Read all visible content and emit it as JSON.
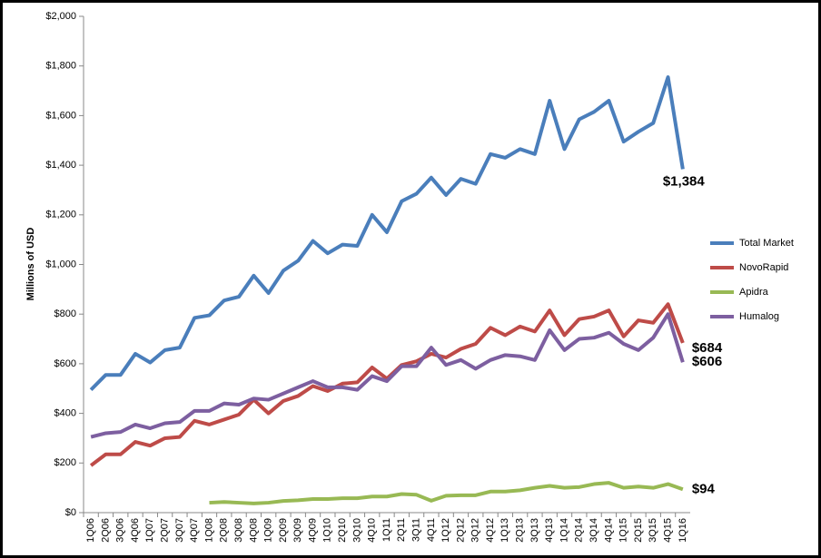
{
  "chart_data": {
    "type": "line",
    "ylabel": "Millions of USD",
    "categories": [
      "1Q06",
      "2Q06",
      "3Q06",
      "4Q06",
      "1Q07",
      "2Q07",
      "3Q07",
      "4Q07",
      "1Q08",
      "2Q08",
      "3Q08",
      "4Q08",
      "1Q09",
      "2Q09",
      "3Q09",
      "4Q09",
      "1Q10",
      "2Q10",
      "3Q10",
      "4Q10",
      "1Q11",
      "2Q11",
      "3Q11",
      "4Q11",
      "1Q12",
      "2Q12",
      "3Q12",
      "4Q12",
      "1Q13",
      "2Q13",
      "3Q13",
      "4Q13",
      "1Q14",
      "2Q14",
      "3Q14",
      "4Q14",
      "1Q15",
      "2Q15",
      "3Q15",
      "4Q15",
      "1Q16"
    ],
    "series": [
      {
        "name": "Total Market",
        "color": "#4a7ebb",
        "values": [
          495,
          555,
          555,
          640,
          605,
          655,
          665,
          785,
          795,
          855,
          870,
          955,
          885,
          975,
          1015,
          1095,
          1045,
          1080,
          1075,
          1200,
          1130,
          1255,
          1285,
          1350,
          1280,
          1345,
          1325,
          1445,
          1430,
          1465,
          1445,
          1660,
          1465,
          1585,
          1615,
          1660,
          1495,
          1535,
          1570,
          1755,
          1384
        ],
        "value_labels": [
          null,
          null,
          null,
          null,
          null,
          null,
          null,
          null,
          null,
          null,
          null,
          null,
          null,
          null,
          null,
          null,
          null,
          null,
          null,
          null,
          null,
          null,
          null,
          null,
          null,
          null,
          null,
          null,
          null,
          null,
          null,
          null,
          null,
          null,
          null,
          null,
          null,
          null,
          null,
          null,
          "$1,384"
        ]
      },
      {
        "name": "NovoRapid",
        "color": "#be4b48",
        "values": [
          190,
          235,
          235,
          285,
          270,
          300,
          305,
          370,
          355,
          375,
          395,
          455,
          400,
          450,
          470,
          510,
          490,
          520,
          525,
          585,
          540,
          595,
          610,
          640,
          625,
          660,
          680,
          745,
          715,
          750,
          730,
          815,
          715,
          780,
          790,
          815,
          710,
          775,
          765,
          840,
          684
        ],
        "value_labels": [
          null,
          null,
          null,
          null,
          null,
          null,
          null,
          null,
          null,
          null,
          null,
          null,
          null,
          null,
          null,
          null,
          null,
          null,
          null,
          null,
          null,
          null,
          null,
          null,
          null,
          null,
          null,
          null,
          null,
          null,
          null,
          null,
          null,
          null,
          null,
          null,
          null,
          null,
          null,
          null,
          "$684"
        ]
      },
      {
        "name": "Apidra",
        "color": "#98b954",
        "values": [
          null,
          null,
          null,
          null,
          null,
          null,
          null,
          null,
          40,
          43,
          40,
          37,
          40,
          47,
          50,
          55,
          55,
          58,
          58,
          65,
          65,
          75,
          72,
          48,
          68,
          70,
          70,
          85,
          85,
          90,
          100,
          108,
          100,
          103,
          115,
          120,
          100,
          105,
          100,
          115,
          94
        ],
        "value_labels": [
          null,
          null,
          null,
          null,
          null,
          null,
          null,
          null,
          null,
          null,
          null,
          null,
          null,
          null,
          null,
          null,
          null,
          null,
          null,
          null,
          null,
          null,
          null,
          null,
          null,
          null,
          null,
          null,
          null,
          null,
          null,
          null,
          null,
          null,
          null,
          null,
          null,
          null,
          null,
          null,
          "$94"
        ]
      },
      {
        "name": "Humalog",
        "color": "#7d5fa0",
        "values": [
          305,
          320,
          325,
          355,
          340,
          360,
          365,
          410,
          410,
          440,
          435,
          460,
          455,
          480,
          505,
          530,
          505,
          505,
          495,
          550,
          530,
          590,
          590,
          665,
          595,
          615,
          580,
          615,
          635,
          630,
          615,
          735,
          655,
          700,
          705,
          725,
          680,
          655,
          705,
          800,
          606
        ],
        "value_labels": [
          null,
          null,
          null,
          null,
          null,
          null,
          null,
          null,
          null,
          null,
          null,
          null,
          null,
          null,
          null,
          null,
          null,
          null,
          null,
          null,
          null,
          null,
          null,
          null,
          null,
          null,
          null,
          null,
          null,
          null,
          null,
          null,
          null,
          null,
          null,
          null,
          null,
          null,
          null,
          null,
          "$606"
        ]
      }
    ],
    "ylim": [
      0,
      2000
    ],
    "yticks": [
      {
        "value": 0,
        "label": "$0"
      },
      {
        "value": 200,
        "label": "$200"
      },
      {
        "value": 400,
        "label": "$400"
      },
      {
        "value": 600,
        "label": "$600"
      },
      {
        "value": 800,
        "label": "$800"
      },
      {
        "value": 1000,
        "label": "$1,000"
      },
      {
        "value": 1200,
        "label": "$1,200"
      },
      {
        "value": 1400,
        "label": "$1,400"
      },
      {
        "value": 1600,
        "label": "$1,600"
      },
      {
        "value": 1800,
        "label": "$1,800"
      },
      {
        "value": 2000,
        "label": "$2,000"
      }
    ],
    "legend": "right"
  }
}
